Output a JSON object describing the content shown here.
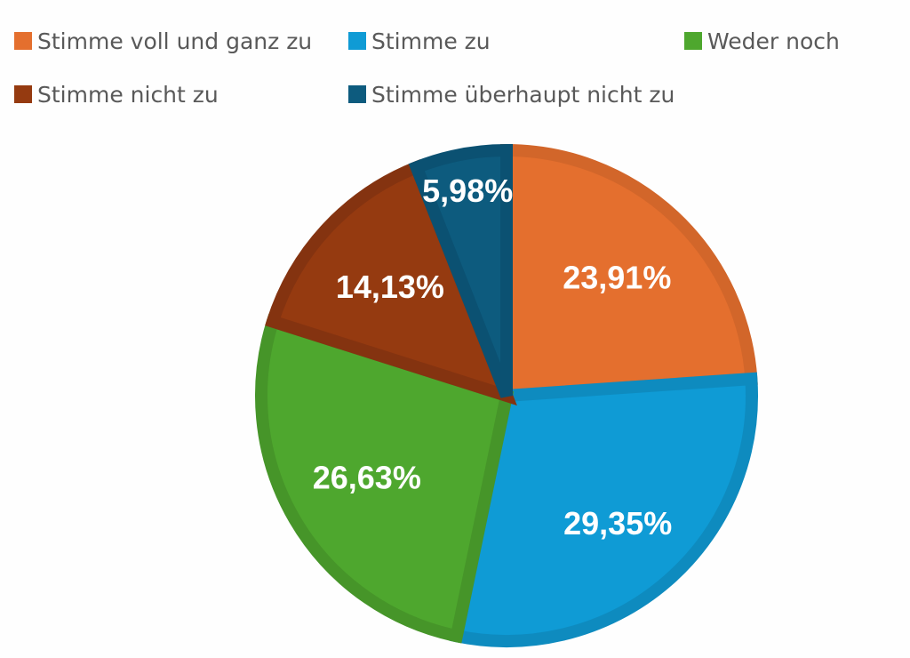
{
  "chart_data": {
    "type": "pie",
    "title": "",
    "categories": [
      "Stimme voll und ganz zu",
      "Stimme zu",
      "Weder noch",
      "Stimme nicht zu",
      "Stimme überhaupt nicht zu"
    ],
    "values": [
      23.91,
      29.35,
      26.63,
      14.13,
      5.98
    ],
    "data_labels": [
      "23,91%",
      "29,35%",
      "26,63%",
      "14,13%",
      "5,98%"
    ],
    "colors": [
      "#e46f2e",
      "#0f9bd5",
      "#4ea72e",
      "#953a10",
      "#0d5b7e"
    ],
    "border_colors": [
      "#d2662a",
      "#0e8bbf",
      "#469529",
      "#843310",
      "#0b5172"
    ],
    "legend_position": "top",
    "start_angle": "12 o'clock",
    "direction": "clockwise"
  }
}
